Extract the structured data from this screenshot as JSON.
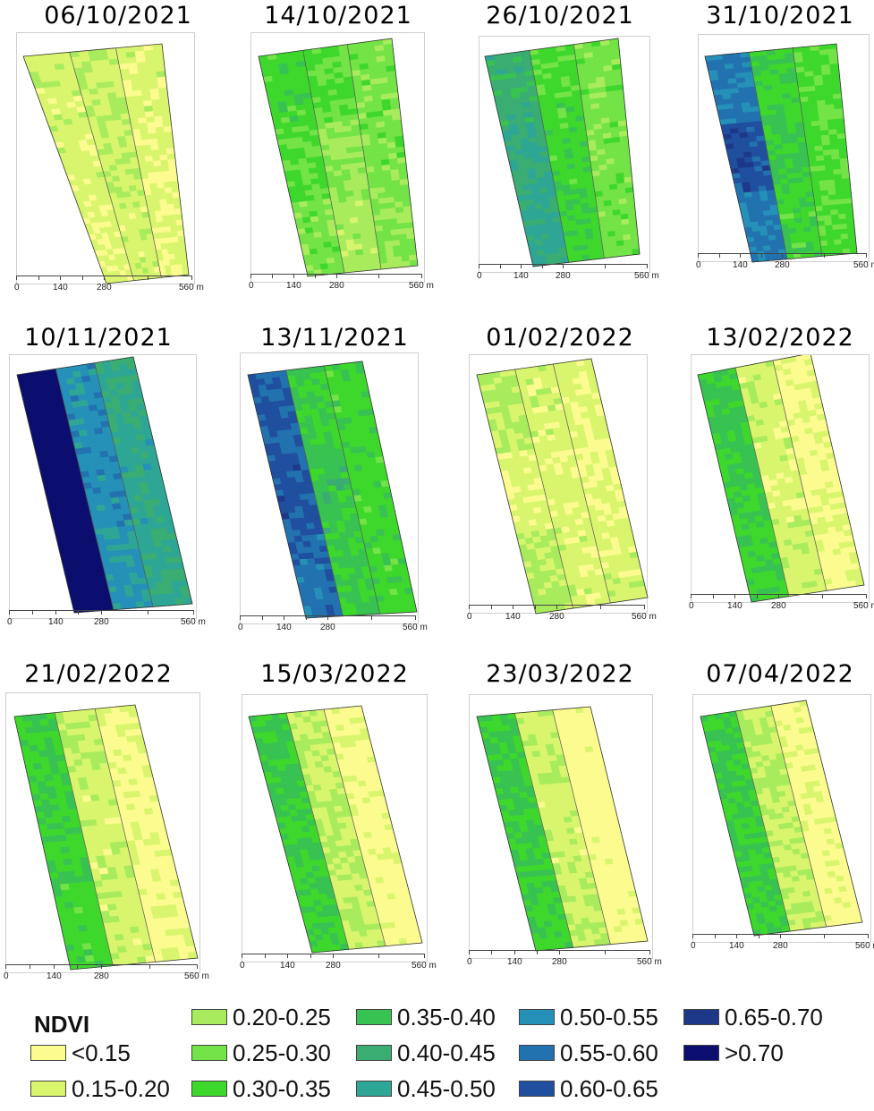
{
  "scale_labels": {
    "zero": "0",
    "a": "140",
    "b": "280",
    "c": "560 m"
  },
  "panels": [
    {
      "date": "06/10/2021",
      "zones": [
        [
          0.18,
          0.2,
          0.17
        ],
        [
          0.17,
          0.19,
          0.16
        ],
        [
          0.16,
          0.18,
          0.16
        ]
      ]
    },
    {
      "date": "14/10/2021",
      "zones": [
        [
          0.33,
          0.3,
          0.27
        ],
        [
          0.3,
          0.24,
          0.27
        ],
        [
          0.27,
          0.22,
          0.25
        ]
      ]
    },
    {
      "date": "26/10/2021",
      "zones": [
        [
          0.42,
          0.32,
          0.27
        ],
        [
          0.45,
          0.33,
          0.27
        ],
        [
          0.46,
          0.34,
          0.28
        ]
      ]
    },
    {
      "date": "31/10/2021",
      "zones": [
        [
          0.56,
          0.34,
          0.31
        ],
        [
          0.63,
          0.36,
          0.31
        ],
        [
          0.56,
          0.33,
          0.31
        ]
      ]
    },
    {
      "date": "10/11/2021",
      "zones": [
        [
          0.75,
          0.52,
          0.46
        ],
        [
          0.76,
          0.53,
          0.47
        ],
        [
          0.76,
          0.51,
          0.46
        ]
      ]
    },
    {
      "date": "13/11/2021",
      "zones": [
        [
          0.6,
          0.36,
          0.33
        ],
        [
          0.62,
          0.37,
          0.33
        ],
        [
          0.58,
          0.36,
          0.33
        ]
      ]
    },
    {
      "date": "01/02/2022",
      "zones": [
        [
          0.21,
          0.17,
          0.16
        ],
        [
          0.16,
          0.16,
          0.16
        ],
        [
          0.21,
          0.17,
          0.17
        ]
      ]
    },
    {
      "date": "13/02/2022",
      "zones": [
        [
          0.36,
          0.18,
          0.14
        ],
        [
          0.35,
          0.17,
          0.14
        ],
        [
          0.34,
          0.18,
          0.14
        ]
      ]
    },
    {
      "date": "21/02/2022",
      "zones": [
        [
          0.35,
          0.19,
          0.14
        ],
        [
          0.34,
          0.18,
          0.14
        ],
        [
          0.33,
          0.18,
          0.14
        ]
      ]
    },
    {
      "date": "15/03/2022",
      "zones": [
        [
          0.36,
          0.2,
          0.13
        ],
        [
          0.35,
          0.19,
          0.13
        ],
        [
          0.34,
          0.2,
          0.12
        ]
      ]
    },
    {
      "date": "23/03/2022",
      "zones": [
        [
          0.36,
          0.19,
          0.12
        ],
        [
          0.35,
          0.18,
          0.12
        ],
        [
          0.34,
          0.19,
          0.12
        ]
      ]
    },
    {
      "date": "07/04/2022",
      "zones": [
        [
          0.36,
          0.2,
          0.13
        ],
        [
          0.35,
          0.19,
          0.13
        ],
        [
          0.34,
          0.19,
          0.13
        ]
      ]
    }
  ],
  "legend": {
    "title": "NDVI",
    "classes": [
      {
        "label": "<0.15",
        "color": "#fbfb8f"
      },
      {
        "label": "0.15-0.20",
        "color": "#d9f56e"
      },
      {
        "label": "0.20-0.25",
        "color": "#a8ec5d"
      },
      {
        "label": "0.25-0.30",
        "color": "#73e347"
      },
      {
        "label": "0.30-0.35",
        "color": "#3ed82d"
      },
      {
        "label": "0.35-0.40",
        "color": "#38c252"
      },
      {
        "label": "0.40-0.45",
        "color": "#3aad72"
      },
      {
        "label": "0.45-0.50",
        "color": "#2ea695"
      },
      {
        "label": "0.50-0.55",
        "color": "#2590b8"
      },
      {
        "label": "0.55-0.60",
        "color": "#2272b0"
      },
      {
        "label": "0.60-0.65",
        "color": "#1f4f9e"
      },
      {
        "label": "0.65-0.70",
        "color": "#1d3889"
      },
      {
        "label": ">0.70",
        "color": "#0b0e6e"
      }
    ]
  }
}
